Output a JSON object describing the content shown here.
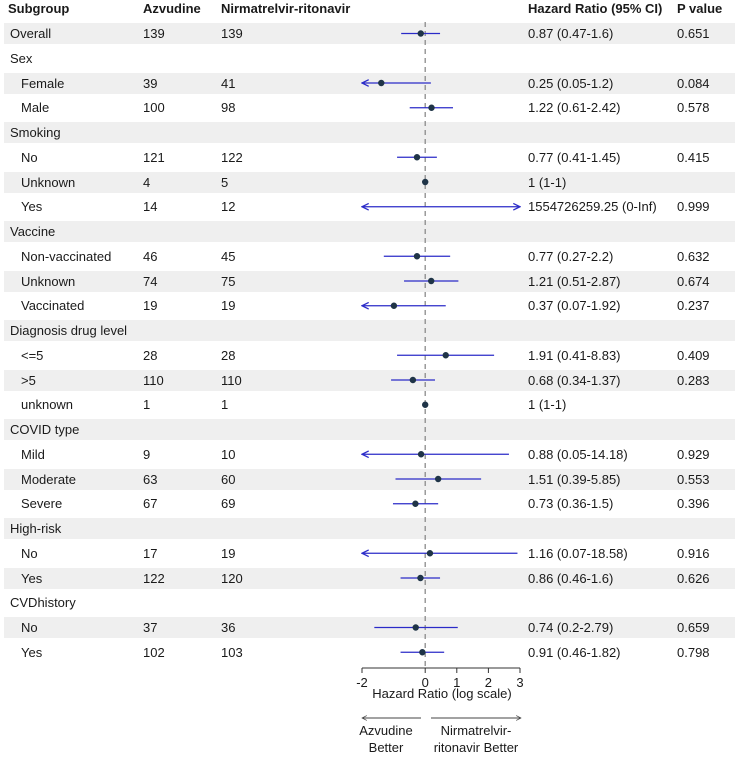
{
  "headers": {
    "subgroup": "Subgroup",
    "azvudine": "Azvudine",
    "nirmatrelvir": "Nirmatrelvir-ritonavir",
    "hr": "Hazard Ratio (95% CI)",
    "pvalue": "P value"
  },
  "colors": {
    "band": "#efefef",
    "ci_line": "#2b2bc8",
    "point": "#1f3447",
    "ref_line": "#8a8a8a",
    "text": "#1a1a1a"
  },
  "chart_data": {
    "type": "forest",
    "xlabel": "Hazard Ratio (log scale)",
    "x_ticks": [
      -2,
      0,
      1,
      2,
      3
    ],
    "xlim": [
      -2,
      3
    ],
    "reference_line": 0,
    "direction_labels": {
      "left": [
        "Azvudine",
        "Better"
      ],
      "right": [
        "Nirmatrelvir-",
        "ritonavir Better"
      ]
    },
    "rows": [
      {
        "label": "Overall",
        "indent": false,
        "header": false,
        "azvudine": "139",
        "nirmatrelvir": "139",
        "hr_text": "0.87 (0.47-1.6)",
        "p": "0.651",
        "point": -0.14,
        "lo": -0.76,
        "hi": 0.47,
        "arrow_left": false,
        "arrow_right": false
      },
      {
        "label": "Sex",
        "indent": false,
        "header": true
      },
      {
        "label": "Female",
        "indent": true,
        "header": false,
        "azvudine": "39",
        "nirmatrelvir": "41",
        "hr_text": "0.25 (0.05-1.2)",
        "p": "0.084",
        "point": -1.39,
        "lo": -2,
        "hi": 0.18,
        "arrow_left": true,
        "arrow_right": false
      },
      {
        "label": "Male",
        "indent": true,
        "header": false,
        "azvudine": "100",
        "nirmatrelvir": "98",
        "hr_text": "1.22 (0.61-2.42)",
        "p": "0.578",
        "point": 0.2,
        "lo": -0.49,
        "hi": 0.88,
        "arrow_left": false,
        "arrow_right": false
      },
      {
        "label": "Smoking",
        "indent": false,
        "header": true
      },
      {
        "label": "No",
        "indent": true,
        "header": false,
        "azvudine": "121",
        "nirmatrelvir": "122",
        "hr_text": "0.77 (0.41-1.45)",
        "p": "0.415",
        "point": -0.26,
        "lo": -0.89,
        "hi": 0.37,
        "arrow_left": false,
        "arrow_right": false
      },
      {
        "label": "Unknown",
        "indent": true,
        "header": false,
        "azvudine": "4",
        "nirmatrelvir": "5",
        "hr_text": "1 (1-1)",
        "p": "",
        "point": 0,
        "lo": 0,
        "hi": 0,
        "arrow_left": false,
        "arrow_right": false
      },
      {
        "label": "Yes",
        "indent": true,
        "header": false,
        "azvudine": "14",
        "nirmatrelvir": "12",
        "hr_text": "1554726259.25 (0-Inf)",
        "p": "0.999",
        "point": null,
        "lo": -2,
        "hi": 3,
        "arrow_left": true,
        "arrow_right": true
      },
      {
        "label": "Vaccine",
        "indent": false,
        "header": true
      },
      {
        "label": "Non-vaccinated",
        "indent": true,
        "header": false,
        "azvudine": "46",
        "nirmatrelvir": "45",
        "hr_text": "0.77 (0.27-2.2)",
        "p": "0.632",
        "point": -0.26,
        "lo": -1.31,
        "hi": 0.79,
        "arrow_left": false,
        "arrow_right": false
      },
      {
        "label": "Unknown",
        "indent": true,
        "header": false,
        "azvudine": "74",
        "nirmatrelvir": "75",
        "hr_text": "1.21 (0.51-2.87)",
        "p": "0.674",
        "point": 0.19,
        "lo": -0.67,
        "hi": 1.05,
        "arrow_left": false,
        "arrow_right": false
      },
      {
        "label": "Vaccinated",
        "indent": true,
        "header": false,
        "azvudine": "19",
        "nirmatrelvir": "19",
        "hr_text": "0.37 (0.07-1.92)",
        "p": "0.237",
        "point": -0.99,
        "lo": -2,
        "hi": 0.65,
        "arrow_left": true,
        "arrow_right": false
      },
      {
        "label": "Diagnosis drug level",
        "indent": false,
        "header": true
      },
      {
        "label": "<=5",
        "indent": true,
        "header": false,
        "azvudine": "28",
        "nirmatrelvir": "28",
        "hr_text": "1.91 (0.41-8.83)",
        "p": "0.409",
        "point": 0.65,
        "lo": -0.89,
        "hi": 2.18,
        "arrow_left": false,
        "arrow_right": false
      },
      {
        "label": ">5",
        "indent": true,
        "header": false,
        "azvudine": "110",
        "nirmatrelvir": "110",
        "hr_text": "0.68 (0.34-1.37)",
        "p": "0.283",
        "point": -0.39,
        "lo": -1.08,
        "hi": 0.31,
        "arrow_left": false,
        "arrow_right": false
      },
      {
        "label": "unknown",
        "indent": true,
        "header": false,
        "azvudine": "1",
        "nirmatrelvir": "1",
        "hr_text": "1 (1-1)",
        "p": "",
        "point": 0,
        "lo": 0,
        "hi": 0,
        "arrow_left": false,
        "arrow_right": false
      },
      {
        "label": "COVID type",
        "indent": false,
        "header": true
      },
      {
        "label": "Mild",
        "indent": true,
        "header": false,
        "azvudine": "9",
        "nirmatrelvir": "10",
        "hr_text": "0.88 (0.05-14.18)",
        "p": "0.929",
        "point": -0.13,
        "lo": -2,
        "hi": 2.65,
        "arrow_left": true,
        "arrow_right": false
      },
      {
        "label": "Moderate",
        "indent": true,
        "header": false,
        "azvudine": "63",
        "nirmatrelvir": "60",
        "hr_text": "1.51 (0.39-5.85)",
        "p": "0.553",
        "point": 0.41,
        "lo": -0.94,
        "hi": 1.77,
        "arrow_left": false,
        "arrow_right": false
      },
      {
        "label": "Severe",
        "indent": true,
        "header": false,
        "azvudine": "67",
        "nirmatrelvir": "69",
        "hr_text": "0.73 (0.36-1.5)",
        "p": "0.396",
        "point": -0.31,
        "lo": -1.02,
        "hi": 0.41,
        "arrow_left": false,
        "arrow_right": false
      },
      {
        "label": "High-risk",
        "indent": false,
        "header": true
      },
      {
        "label": "No",
        "indent": true,
        "header": false,
        "azvudine": "17",
        "nirmatrelvir": "19",
        "hr_text": "1.16 (0.07-18.58)",
        "p": "0.916",
        "point": 0.15,
        "lo": -2,
        "hi": 2.92,
        "arrow_left": true,
        "arrow_right": false
      },
      {
        "label": "Yes",
        "indent": true,
        "header": false,
        "azvudine": "122",
        "nirmatrelvir": "120",
        "hr_text": "0.86 (0.46-1.6)",
        "p": "0.626",
        "point": -0.15,
        "lo": -0.78,
        "hi": 0.47,
        "arrow_left": false,
        "arrow_right": false
      },
      {
        "label": "CVDhistory",
        "indent": false,
        "header": true
      },
      {
        "label": "No",
        "indent": true,
        "header": false,
        "azvudine": "37",
        "nirmatrelvir": "36",
        "hr_text": "0.74 (0.2-2.79)",
        "p": "0.659",
        "point": -0.3,
        "lo": -1.61,
        "hi": 1.03,
        "arrow_left": false,
        "arrow_right": false
      },
      {
        "label": "Yes",
        "indent": true,
        "header": false,
        "azvudine": "102",
        "nirmatrelvir": "103",
        "hr_text": "0.91 (0.46-1.82)",
        "p": "0.798",
        "point": -0.09,
        "lo": -0.78,
        "hi": 0.6,
        "arrow_left": false,
        "arrow_right": false
      }
    ]
  }
}
